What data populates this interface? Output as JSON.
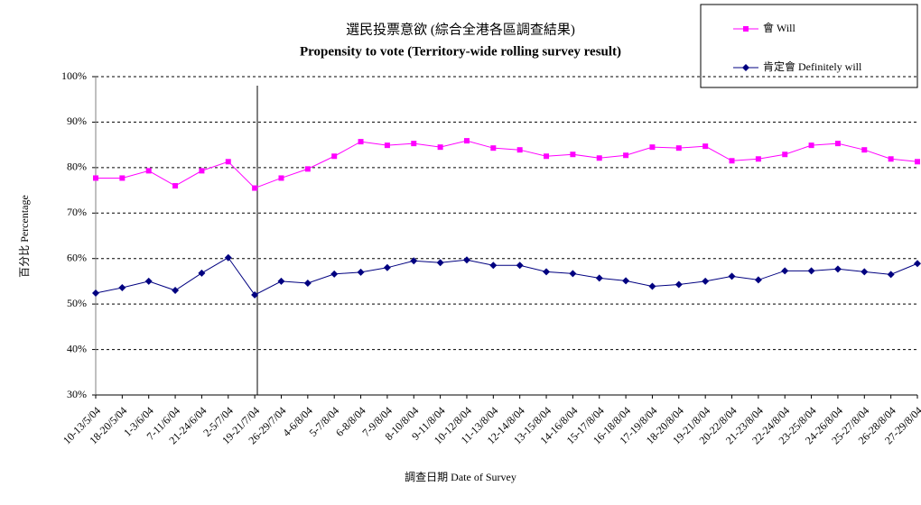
{
  "chart_data": {
    "type": "line",
    "title": "選民投票意欲 (綜合全港各區調查結果)",
    "subtitle": "Propensity to vote (Territory-wide rolling survey result)",
    "x_label": "調查日期 Date of Survey",
    "y_label": "百分比 Percentage",
    "categories": [
      "10-13/5/04",
      "18-20/5/04",
      "1-3/6/04",
      "7-11/6/04",
      "21-24/6/04",
      "2-5/7/04",
      "19-21/7/04",
      "26-29/7/04",
      "4-6/8/04",
      "5-7/8/04",
      "6-8/8/04",
      "7-9/8/04",
      "8-10/8/04",
      "9-11/8/04",
      "10-12/8/04",
      "11-13/8/04",
      "12-14/8/04",
      "13-15/8/04",
      "14-16/8/04",
      "15-17/8/04",
      "16-18/8/04",
      "17-19/8/04",
      "18-20/8/04",
      "19-21/8/04",
      "20-22/8/04",
      "21-23/8/04",
      "22-24/8/04",
      "23-25/8/04",
      "24-26/8/04",
      "25-27/8/04",
      "26-28/8/04",
      "27-29/8/04"
    ],
    "series": [
      {
        "name": "會 Will",
        "color": "#ff00ff",
        "marker": "square",
        "values": [
          77.7,
          77.7,
          79.3,
          76.0,
          79.3,
          81.3,
          75.5,
          77.7,
          79.7,
          82.5,
          85.7,
          84.9,
          85.3,
          84.5,
          85.9,
          84.3,
          83.9,
          82.5,
          82.9,
          82.1,
          82.7,
          84.5,
          84.3,
          84.7,
          81.5,
          81.9,
          82.9,
          84.9,
          85.3,
          83.9,
          81.9,
          81.3
        ]
      },
      {
        "name": "肯定會 Definitely will",
        "color": "#000080",
        "marker": "diamond",
        "values": [
          52.4,
          53.6,
          55.0,
          53.0,
          56.8,
          60.2,
          52.0,
          55.0,
          54.6,
          56.6,
          57.0,
          58.0,
          59.5,
          59.1,
          59.7,
          58.5,
          58.5,
          57.1,
          56.7,
          55.7,
          55.1,
          53.9,
          54.3,
          55.0,
          56.1,
          55.3,
          57.3,
          57.3,
          57.7,
          57.1,
          56.5,
          58.9
        ]
      }
    ],
    "ylim": [
      30,
      100
    ],
    "yticks": [
      {
        "value": 30,
        "label": "30%"
      },
      {
        "value": 40,
        "label": "40%"
      },
      {
        "value": 50,
        "label": "50%"
      },
      {
        "value": 60,
        "label": "60%"
      },
      {
        "value": 70,
        "label": "70%"
      },
      {
        "value": 80,
        "label": "80%"
      },
      {
        "value": 90,
        "label": "90%"
      },
      {
        "value": 100,
        "label": "100%"
      }
    ],
    "grid": true,
    "legend_position": "top-right"
  }
}
